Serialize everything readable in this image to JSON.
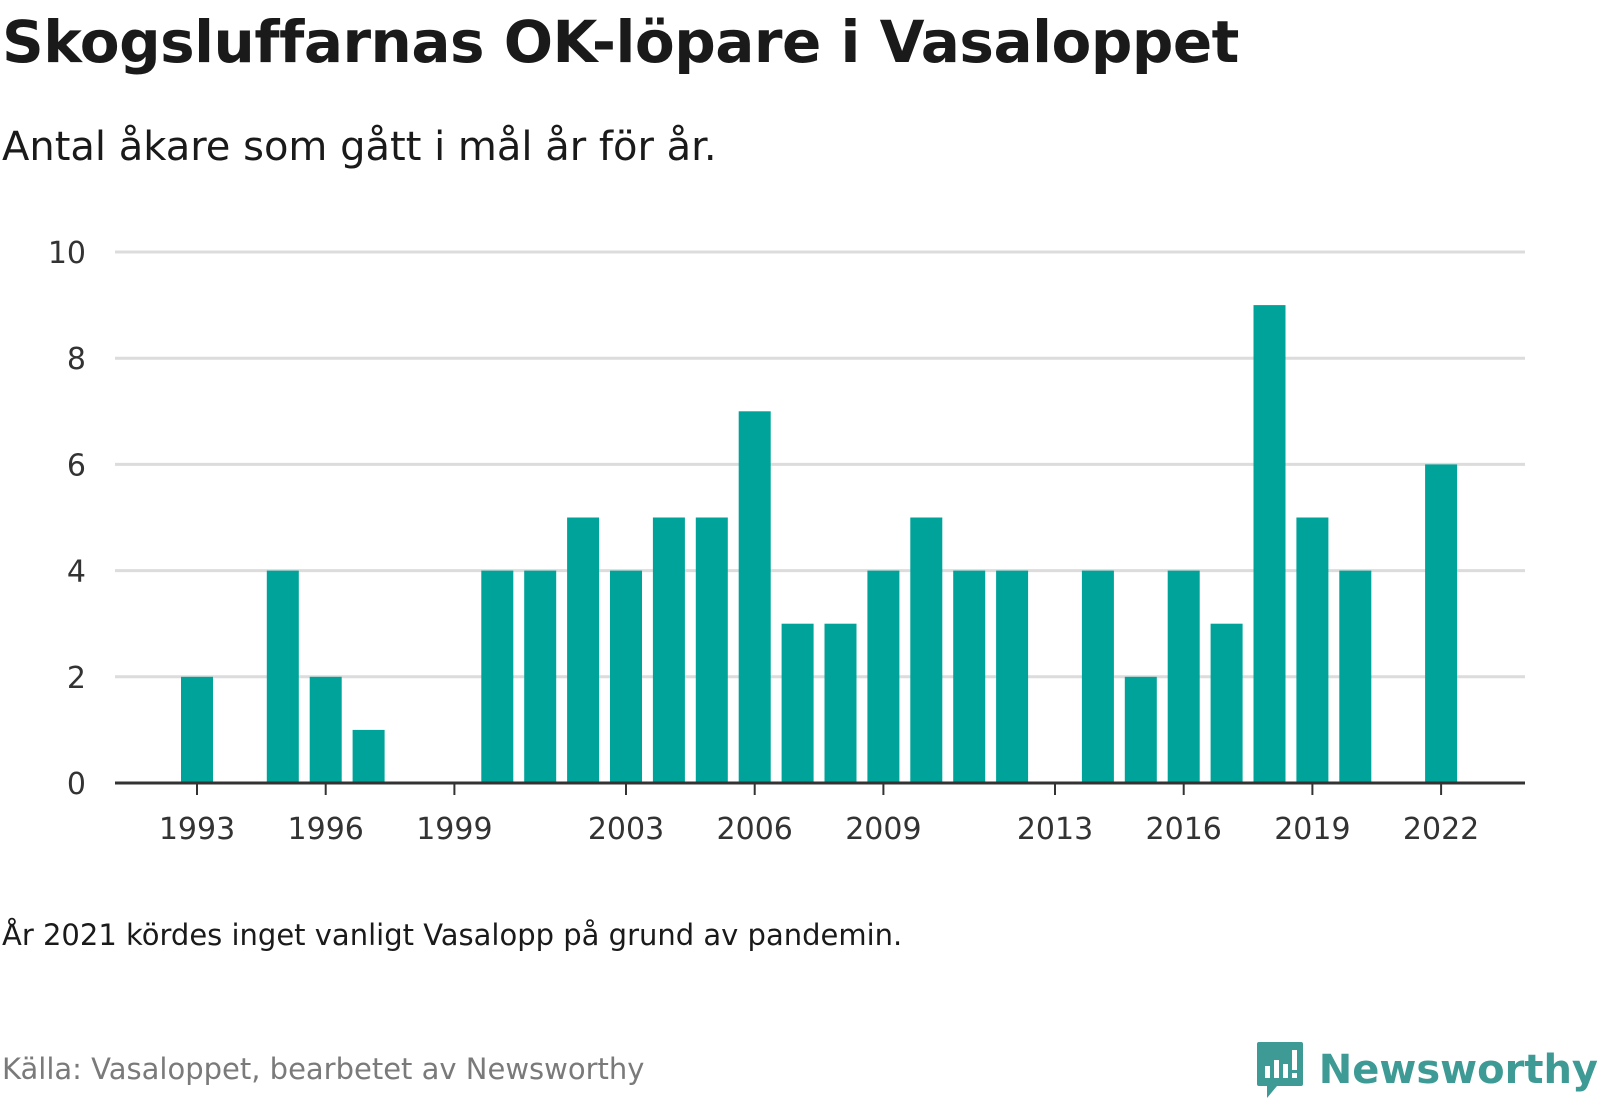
{
  "title": "Skogsluffarnas OK-löpare i Vasaloppet",
  "subtitle": "Antal åkare som gått i mål år för år.",
  "note": "År 2021 kördes inget vanligt Vasalopp på grund av pandemin.",
  "source": "Källa: Vasaloppet, bearbetet av Newsworthy",
  "brand": {
    "name": "Newsworthy",
    "icon": "newsworthy-logo-icon",
    "color": "#3d9a95"
  },
  "colors": {
    "bar": "#00a39a",
    "grid": "#dcdcdc",
    "axis": "#333333"
  },
  "chart_data": {
    "type": "bar",
    "categories": [
      1993,
      1994,
      1995,
      1996,
      1997,
      1998,
      1999,
      2000,
      2001,
      2002,
      2003,
      2004,
      2005,
      2006,
      2007,
      2008,
      2009,
      2010,
      2011,
      2012,
      2013,
      2014,
      2015,
      2016,
      2017,
      2018,
      2019,
      2020,
      2021,
      2022
    ],
    "values": [
      2,
      0,
      4,
      2,
      1,
      0,
      0,
      4,
      4,
      5,
      4,
      5,
      5,
      7,
      3,
      3,
      4,
      5,
      4,
      4,
      0,
      4,
      2,
      4,
      3,
      9,
      5,
      4,
      0,
      6
    ],
    "x_tick_labels": [
      "1993",
      "1996",
      "1999",
      "2003",
      "2006",
      "2009",
      "2013",
      "2016",
      "2019",
      "2022"
    ],
    "y_ticks": [
      0,
      2,
      4,
      6,
      8,
      10
    ],
    "ylim": [
      0,
      10
    ],
    "grid": true
  }
}
